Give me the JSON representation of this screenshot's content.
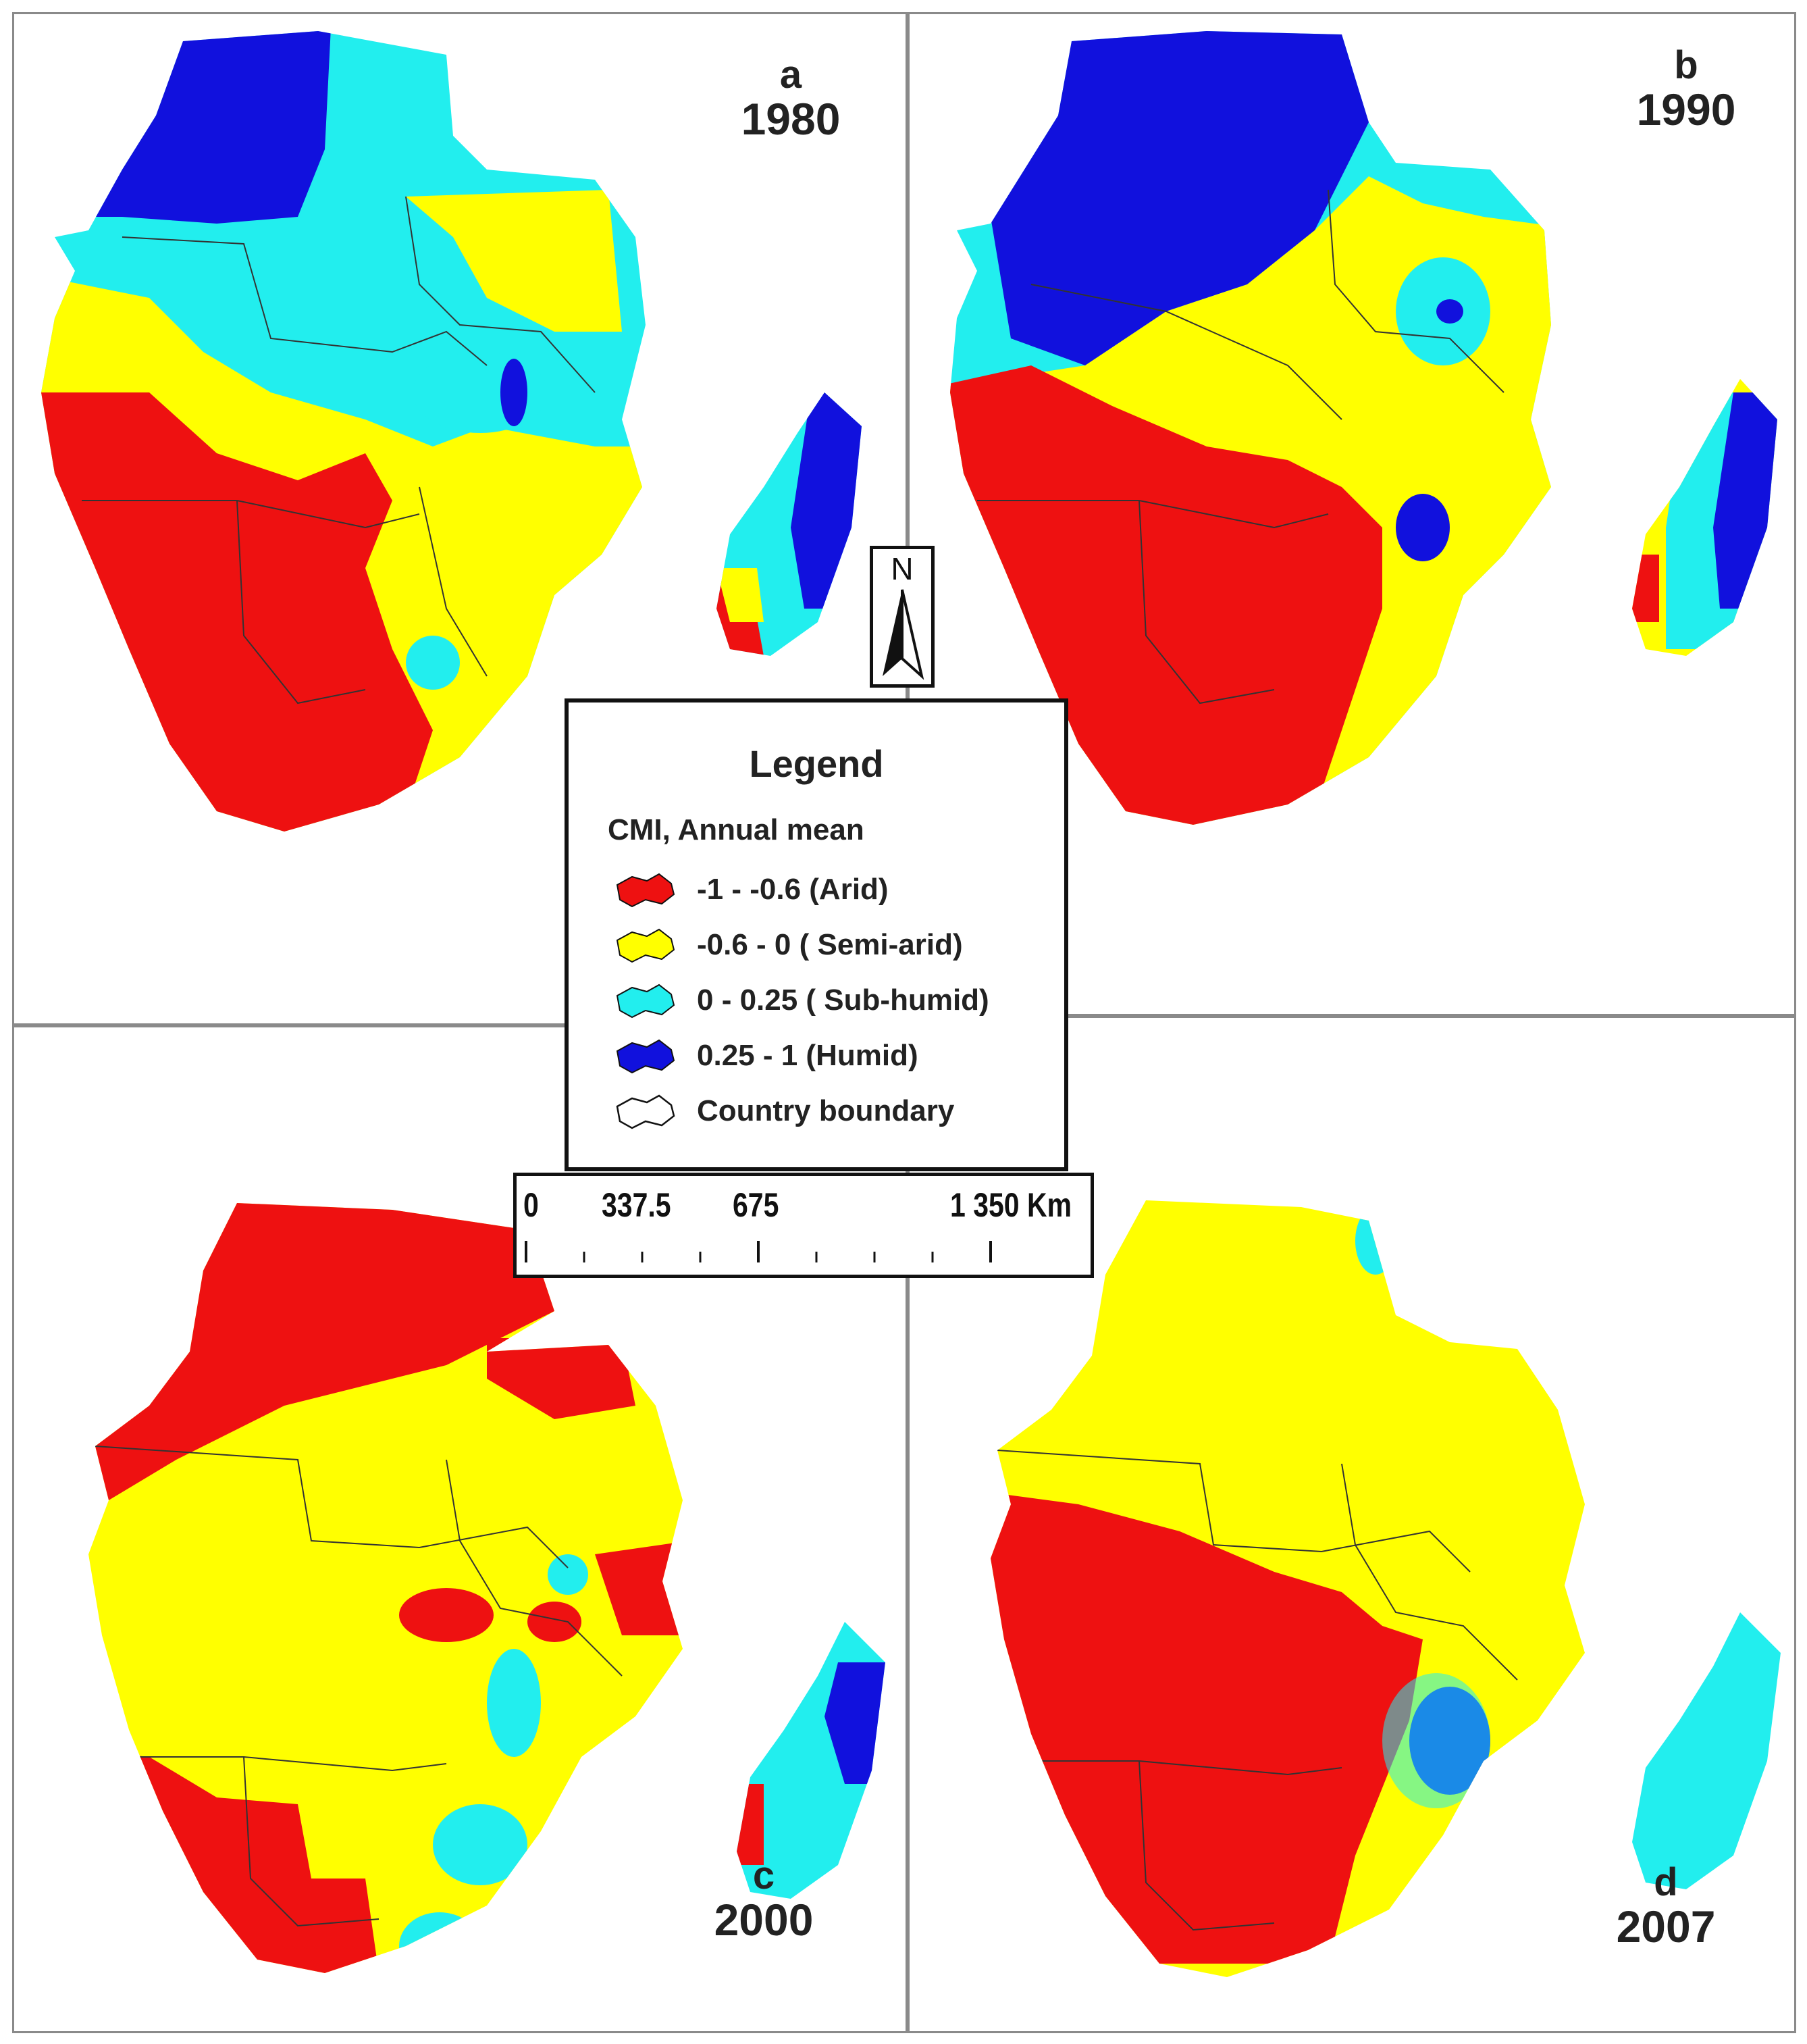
{
  "panels": [
    {
      "letter": "a",
      "year": "1980"
    },
    {
      "letter": "b",
      "year": "1990"
    },
    {
      "letter": "c",
      "year": "2000"
    },
    {
      "letter": "d",
      "year": "2007"
    }
  ],
  "north_arrow": {
    "label": "N"
  },
  "legend": {
    "title": "Legend",
    "subtitle": "CMI, Annual mean",
    "items": [
      {
        "label": "-1 - -0.6 (Arid)",
        "color": "#ee1111"
      },
      {
        "label": "-0.6 - 0 ( Semi-arid)",
        "color": "#ffff00"
      },
      {
        "label": "0 - 0.25 ( Sub-humid)",
        "color": "#22eeee"
      },
      {
        "label": "0.25 - 1 (Humid)",
        "color": "#1111dd"
      },
      {
        "label": "Country boundary",
        "color": "#ffffff"
      }
    ]
  },
  "scale_bar": {
    "labels": [
      "0",
      "337.5",
      "675",
      "1 350 Km"
    ]
  },
  "colors": {
    "arid": "#ee1111",
    "semi_arid": "#ffff00",
    "sub_humid": "#22eeee",
    "humid": "#1111dd",
    "boundary": "#333333"
  }
}
